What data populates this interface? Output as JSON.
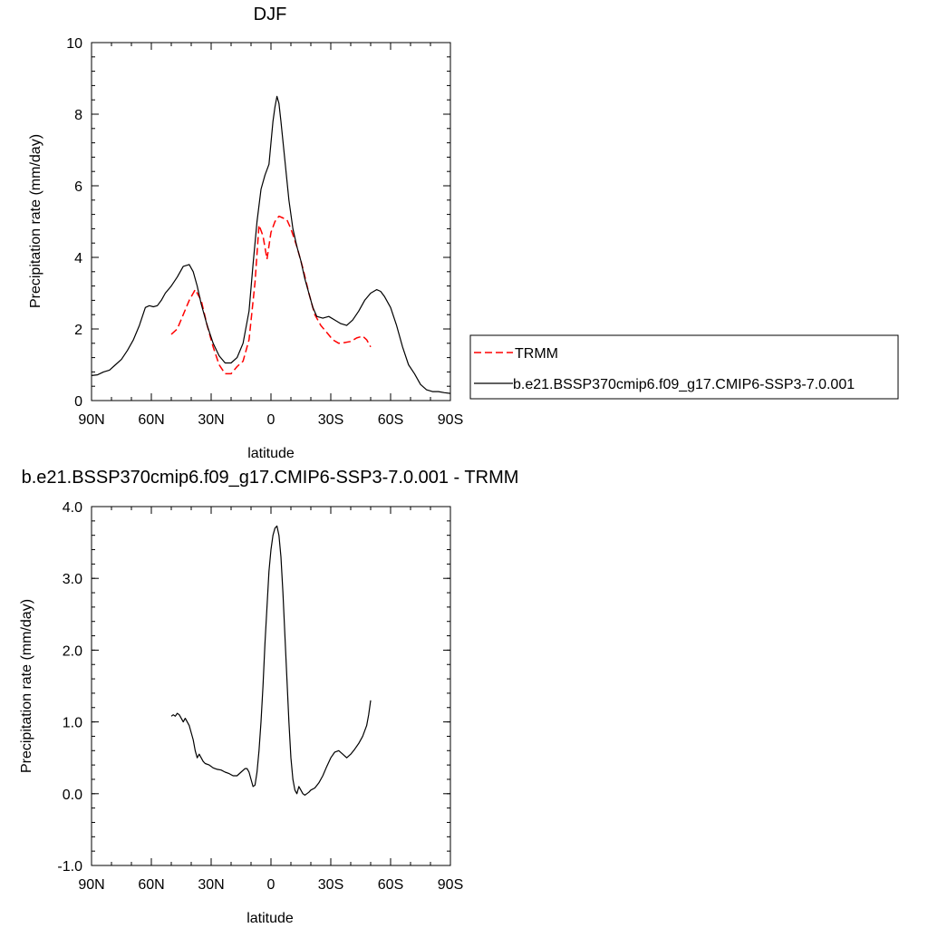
{
  "chart_data": [
    {
      "type": "line",
      "title": "DJF",
      "xlabel": "latitude",
      "ylabel": "Precipitation rate (mm/day)",
      "xlim": [
        -90,
        90
      ],
      "ylim": [
        0,
        10
      ],
      "xticks": [
        -90,
        -60,
        -30,
        0,
        30,
        60,
        90
      ],
      "xtick_labels": [
        "90N",
        "60N",
        "30N",
        "0",
        "30S",
        "60S",
        "90S"
      ],
      "yticks": [
        0,
        2,
        4,
        6,
        8,
        10
      ],
      "ytick_labels": [
        "0",
        "2",
        "4",
        "6",
        "8",
        "10"
      ],
      "grid": false,
      "legend": "right",
      "series": [
        {
          "name": "TRMM",
          "color": "#ff0000",
          "dash": "dashed",
          "x": [
            -50,
            -47,
            -44,
            -41,
            -38,
            -35,
            -32,
            -29,
            -26,
            -23,
            -20,
            -17,
            -14,
            -11,
            -8,
            -6,
            -4,
            -2,
            0,
            2,
            4,
            6,
            8,
            10,
            13,
            16,
            19,
            22,
            25,
            28,
            31,
            34,
            37,
            40,
            43,
            46,
            48,
            50
          ],
          "y": [
            1.85,
            2.0,
            2.4,
            2.8,
            3.1,
            2.8,
            2.1,
            1.5,
            1.0,
            0.75,
            0.75,
            0.95,
            1.1,
            1.7,
            3.3,
            4.9,
            4.6,
            3.95,
            4.7,
            5.0,
            5.15,
            5.1,
            5.05,
            4.8,
            4.3,
            3.7,
            3.0,
            2.4,
            2.1,
            1.9,
            1.7,
            1.6,
            1.62,
            1.65,
            1.75,
            1.8,
            1.7,
            1.5
          ]
        },
        {
          "name": "b.e21.BSSP370cmip6.f09_g17.CMIP6-SSP3-7.0.001",
          "color": "#000000",
          "dash": "solid",
          "x": [
            -90,
            -87,
            -84,
            -81,
            -78,
            -75,
            -72,
            -69,
            -66,
            -63,
            -61,
            -59,
            -57,
            -55,
            -53,
            -50,
            -47,
            -44,
            -41,
            -39,
            -37,
            -35,
            -32,
            -29,
            -26,
            -23,
            -20,
            -17,
            -14,
            -11,
            -9,
            -7,
            -5,
            -3,
            -1,
            0,
            1,
            2,
            3,
            4,
            5,
            7,
            9,
            11,
            13,
            15,
            17,
            19,
            21,
            23,
            26,
            29,
            32,
            35,
            38,
            41,
            44,
            47,
            50,
            53,
            55,
            57,
            60,
            63,
            66,
            69,
            72,
            75,
            78,
            81,
            84,
            87,
            90
          ],
          "y": [
            0.7,
            0.72,
            0.8,
            0.85,
            1.0,
            1.15,
            1.4,
            1.7,
            2.1,
            2.6,
            2.65,
            2.62,
            2.65,
            2.8,
            3.0,
            3.2,
            3.45,
            3.75,
            3.8,
            3.6,
            3.2,
            2.7,
            2.1,
            1.6,
            1.25,
            1.05,
            1.05,
            1.2,
            1.6,
            2.5,
            3.8,
            5.0,
            5.9,
            6.3,
            6.6,
            7.2,
            7.8,
            8.2,
            8.5,
            8.3,
            7.8,
            6.7,
            5.6,
            4.8,
            4.3,
            3.9,
            3.4,
            3.0,
            2.6,
            2.35,
            2.3,
            2.35,
            2.25,
            2.15,
            2.1,
            2.25,
            2.5,
            2.8,
            3.0,
            3.1,
            3.05,
            2.9,
            2.6,
            2.1,
            1.5,
            1.0,
            0.75,
            0.45,
            0.3,
            0.25,
            0.25,
            0.22,
            0.2
          ]
        }
      ]
    },
    {
      "type": "line",
      "title": "b.e21.BSSP370cmip6.f09_g17.CMIP6-SSP3-7.0.001 - TRMM",
      "xlabel": "latitude",
      "ylabel": "Precipitation rate (mm/day)",
      "xlim": [
        -90,
        90
      ],
      "ylim": [
        -1,
        4
      ],
      "xticks": [
        -90,
        -60,
        -30,
        0,
        30,
        60,
        90
      ],
      "xtick_labels": [
        "90N",
        "60N",
        "30N",
        "0",
        "30S",
        "60S",
        "90S"
      ],
      "yticks": [
        -1,
        0,
        1,
        2,
        3,
        4
      ],
      "ytick_labels": [
        "-1.0",
        "0.0",
        "1.0",
        "2.0",
        "3.0",
        "4.0"
      ],
      "grid": false,
      "series": [
        {
          "color": "#000000",
          "dash": "solid",
          "x": [
            -50,
            -49,
            -48,
            -47,
            -46,
            -45,
            -44,
            -43,
            -42,
            -41,
            -40,
            -39,
            -38,
            -37,
            -36,
            -35,
            -34,
            -33,
            -31,
            -29,
            -27,
            -25,
            -23,
            -21,
            -19,
            -17,
            -15,
            -13,
            -12,
            -11,
            -10,
            -9,
            -8,
            -7,
            -6,
            -5,
            -4,
            -3,
            -2,
            -1,
            0,
            1,
            2,
            3,
            4,
            5,
            6,
            7,
            8,
            9,
            10,
            11,
            12,
            13,
            14,
            15,
            16,
            17,
            18,
            19,
            20,
            22,
            24,
            26,
            28,
            30,
            32,
            34,
            36,
            38,
            40,
            42,
            44,
            46,
            48,
            49,
            50
          ],
          "y": [
            1.08,
            1.1,
            1.08,
            1.12,
            1.1,
            1.05,
            1.0,
            1.05,
            1.0,
            0.95,
            0.85,
            0.75,
            0.6,
            0.5,
            0.55,
            0.5,
            0.45,
            0.42,
            0.4,
            0.36,
            0.34,
            0.33,
            0.3,
            0.28,
            0.25,
            0.25,
            0.3,
            0.35,
            0.35,
            0.3,
            0.2,
            0.1,
            0.12,
            0.3,
            0.6,
            1.0,
            1.5,
            2.1,
            2.6,
            3.1,
            3.4,
            3.6,
            3.7,
            3.73,
            3.6,
            3.3,
            2.8,
            2.2,
            1.6,
            1.0,
            0.5,
            0.2,
            0.05,
            0.0,
            0.1,
            0.05,
            0.0,
            -0.02,
            0.0,
            0.02,
            0.05,
            0.08,
            0.15,
            0.25,
            0.38,
            0.5,
            0.58,
            0.6,
            0.55,
            0.5,
            0.55,
            0.62,
            0.7,
            0.8,
            0.95,
            1.1,
            1.3
          ]
        }
      ]
    }
  ]
}
